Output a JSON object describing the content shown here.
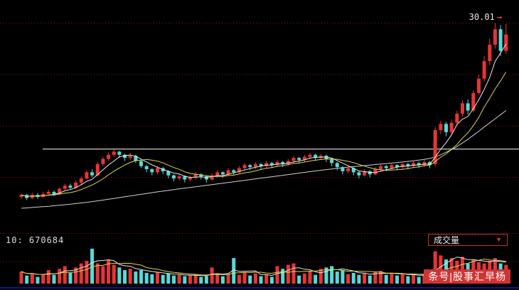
{
  "page": {
    "background": "#000000"
  },
  "price_pane": {
    "last_price_label": "30.01",
    "arrow": "→"
  },
  "volume_pane": {
    "vol_label": "10: 670684",
    "indicator_label": "成交量",
    "dropdown_arrow": "▼"
  },
  "watermark": {
    "text": "条号|股事汇早杨"
  },
  "chart_data": {
    "type": "candlestick",
    "title": "",
    "legend": "none",
    "grid": "dotted-red-horizontal",
    "y_axis": {
      "min": 10,
      "max": 31
    },
    "grid_prices": [
      30,
      25,
      20,
      15
    ],
    "trendline_price": 17.75,
    "last_high": 30.01,
    "candle_format": [
      "open",
      "close",
      "low",
      "high"
    ],
    "candles": [
      [
        13.1,
        13.3,
        12.9,
        13.4
      ],
      [
        13.3,
        13.0,
        12.8,
        13.4
      ],
      [
        13.0,
        13.3,
        12.9,
        13.5
      ],
      [
        13.3,
        13.1,
        12.9,
        13.5
      ],
      [
        13.1,
        13.4,
        13.0,
        13.6
      ],
      [
        13.4,
        13.6,
        13.2,
        13.8
      ],
      [
        13.6,
        13.4,
        13.2,
        13.7
      ],
      [
        13.4,
        13.9,
        13.3,
        14.0
      ],
      [
        13.9,
        14.2,
        13.7,
        14.4
      ],
      [
        14.2,
        14.0,
        13.8,
        14.4
      ],
      [
        14.0,
        14.5,
        13.9,
        14.7
      ],
      [
        14.5,
        14.9,
        14.3,
        15.1
      ],
      [
        14.9,
        15.5,
        14.8,
        15.7
      ],
      [
        15.5,
        15.2,
        15.0,
        15.8
      ],
      [
        15.2,
        16.3,
        15.1,
        16.5
      ],
      [
        16.3,
        16.8,
        16.1,
        17.0
      ],
      [
        16.8,
        17.2,
        16.6,
        17.4
      ],
      [
        17.2,
        17.5,
        17.0,
        17.7
      ],
      [
        17.5,
        17.2,
        16.9,
        17.6
      ],
      [
        17.2,
        16.9,
        16.6,
        17.3
      ],
      [
        16.9,
        17.1,
        16.7,
        17.4
      ],
      [
        17.1,
        16.6,
        16.4,
        17.2
      ],
      [
        16.6,
        16.1,
        15.9,
        16.7
      ],
      [
        16.1,
        15.8,
        15.5,
        16.2
      ],
      [
        15.8,
        15.5,
        15.2,
        15.9
      ],
      [
        15.5,
        15.9,
        15.3,
        16.1
      ],
      [
        15.9,
        15.6,
        15.3,
        16.0
      ],
      [
        15.6,
        15.2,
        14.9,
        15.7
      ],
      [
        15.2,
        14.9,
        14.6,
        15.3
      ],
      [
        14.9,
        15.1,
        14.7,
        15.3
      ],
      [
        15.1,
        14.8,
        14.5,
        15.2
      ],
      [
        14.8,
        15.0,
        14.6,
        15.2
      ],
      [
        15.0,
        15.3,
        14.8,
        15.5
      ],
      [
        15.3,
        15.1,
        14.8,
        15.4
      ],
      [
        15.1,
        14.8,
        14.5,
        15.2
      ],
      [
        14.8,
        15.2,
        14.7,
        15.4
      ],
      [
        15.2,
        15.5,
        15.0,
        15.7
      ],
      [
        15.5,
        15.3,
        15.0,
        15.6
      ],
      [
        15.3,
        15.7,
        15.2,
        15.9
      ],
      [
        15.7,
        15.5,
        15.2,
        15.8
      ],
      [
        15.5,
        15.9,
        15.4,
        16.1
      ],
      [
        15.9,
        16.2,
        15.7,
        16.4
      ],
      [
        16.2,
        16.0,
        15.7,
        16.3
      ],
      [
        16.0,
        16.3,
        15.8,
        16.5
      ],
      [
        16.3,
        16.1,
        15.8,
        16.4
      ],
      [
        16.1,
        16.4,
        15.9,
        16.6
      ],
      [
        16.4,
        16.2,
        15.9,
        16.5
      ],
      [
        16.2,
        16.5,
        16.0,
        16.7
      ],
      [
        16.5,
        16.3,
        16.0,
        16.6
      ],
      [
        16.3,
        16.6,
        16.1,
        16.8
      ],
      [
        16.6,
        16.9,
        16.4,
        17.1
      ],
      [
        16.9,
        16.7,
        16.4,
        17.0
      ],
      [
        16.7,
        17.0,
        16.5,
        17.2
      ],
      [
        17.0,
        17.2,
        16.8,
        17.4
      ],
      [
        17.2,
        16.9,
        16.6,
        17.3
      ],
      [
        16.9,
        17.1,
        16.7,
        17.3
      ],
      [
        17.1,
        16.8,
        16.5,
        17.2
      ],
      [
        16.8,
        16.4,
        16.1,
        16.9
      ],
      [
        16.4,
        16.0,
        15.7,
        16.5
      ],
      [
        16.0,
        15.6,
        15.3,
        16.1
      ],
      [
        15.6,
        15.9,
        15.4,
        16.1
      ],
      [
        15.9,
        15.5,
        15.2,
        16.0
      ],
      [
        15.5,
        15.2,
        14.9,
        15.6
      ],
      [
        15.2,
        15.6,
        15.1,
        15.8
      ],
      [
        15.6,
        15.3,
        15.0,
        15.7
      ],
      [
        15.3,
        15.8,
        15.2,
        16.0
      ],
      [
        15.8,
        16.1,
        15.6,
        16.3
      ],
      [
        16.1,
        15.9,
        15.6,
        16.2
      ],
      [
        15.9,
        16.2,
        15.7,
        16.4
      ],
      [
        16.2,
        16.0,
        15.7,
        16.3
      ],
      [
        16.0,
        16.3,
        15.8,
        16.5
      ],
      [
        16.3,
        16.1,
        15.8,
        16.4
      ],
      [
        16.1,
        16.4,
        15.9,
        16.6
      ],
      [
        16.4,
        16.2,
        15.9,
        16.5
      ],
      [
        16.2,
        16.5,
        16.0,
        16.7
      ],
      [
        16.5,
        16.2,
        15.9,
        16.6
      ],
      [
        16.3,
        19.6,
        16.1,
        19.9
      ],
      [
        19.6,
        20.2,
        19.2,
        20.5
      ],
      [
        20.2,
        19.4,
        19.0,
        20.4
      ],
      [
        19.4,
        20.3,
        19.2,
        20.6
      ],
      [
        20.3,
        21.2,
        20.0,
        21.5
      ],
      [
        21.2,
        22.2,
        20.9,
        22.5
      ],
      [
        22.2,
        21.5,
        21.1,
        22.6
      ],
      [
        21.5,
        23.2,
        21.3,
        23.5
      ],
      [
        23.2,
        24.6,
        23.0,
        25.0
      ],
      [
        24.6,
        26.3,
        24.3,
        26.8
      ],
      [
        26.3,
        27.9,
        25.9,
        28.5
      ],
      [
        27.9,
        29.4,
        27.5,
        30.01
      ],
      [
        29.4,
        27.3,
        26.8,
        29.8
      ],
      [
        27.3,
        28.9,
        27.0,
        29.9
      ]
    ],
    "volumes": [
      18,
      12,
      15,
      10,
      14,
      20,
      13,
      22,
      26,
      16,
      24,
      30,
      34,
      52,
      30,
      26,
      35,
      28,
      24,
      20,
      22,
      18,
      20,
      16,
      14,
      17,
      13,
      15,
      12,
      13,
      11,
      12,
      14,
      10,
      11,
      24,
      15,
      11,
      14,
      38,
      13,
      16,
      12,
      15,
      11,
      13,
      10,
      26,
      22,
      28,
      30,
      12,
      15,
      18,
      13,
      22,
      24,
      26,
      18,
      20,
      14,
      16,
      13,
      15,
      12,
      17,
      19,
      13,
      16,
      12,
      15,
      11,
      14,
      10,
      13,
      12,
      48,
      42,
      36,
      38,
      34,
      40,
      30,
      36,
      32,
      30,
      34,
      38,
      30,
      28
    ],
    "volume_axis": {
      "min": 0,
      "max": 55
    },
    "ma_long": [
      12.0,
      12.04,
      12.08,
      12.12,
      12.16,
      12.2,
      12.25,
      12.3,
      12.35,
      12.4,
      12.46,
      12.52,
      12.58,
      12.65,
      12.72,
      12.8,
      12.88,
      12.96,
      13.04,
      13.12,
      13.2,
      13.28,
      13.36,
      13.44,
      13.52,
      13.6,
      13.67,
      13.74,
      13.81,
      13.88,
      13.95,
      14.02,
      14.09,
      14.16,
      14.23,
      14.3,
      14.37,
      14.44,
      14.51,
      14.58,
      14.65,
      14.72,
      14.79,
      14.86,
      14.93,
      15.0,
      15.07,
      15.14,
      15.21,
      15.28,
      15.35,
      15.42,
      15.49,
      15.56,
      15.63,
      15.7,
      15.76,
      15.82,
      15.88,
      15.94,
      16.0,
      16.05,
      16.1,
      16.15,
      16.2,
      16.25,
      16.3,
      16.35,
      16.4,
      16.45,
      16.5,
      16.56,
      16.62,
      16.68,
      16.75,
      16.85,
      17.0,
      17.2,
      17.45,
      17.7,
      18.0,
      18.35,
      18.7,
      19.1,
      19.5,
      19.9,
      20.3,
      20.7,
      21.1,
      21.5
    ],
    "ma_periods": {
      "ma5": 5,
      "ma10": 10
    },
    "colors": {
      "up": "#e83535",
      "down": "#58d8d8",
      "ma5": "#e8e8e8",
      "ma10": "#d8d850",
      "ma_long": "#d0d0d0",
      "grid": "#7c1c1c",
      "trendline": "#ffffff",
      "frame_bottom": "#16168c",
      "background": "#000000"
    }
  }
}
